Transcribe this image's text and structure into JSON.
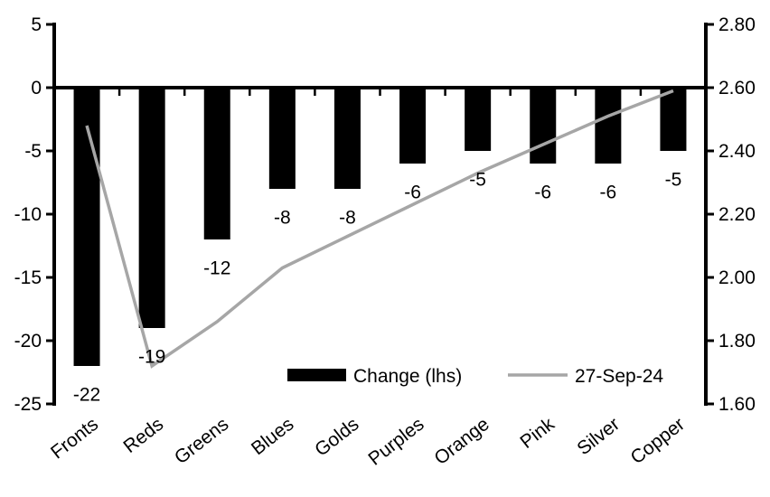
{
  "colors": {
    "bar": "#000000",
    "line": "#A6A6A6",
    "axis": "#000000",
    "text": "#000000",
    "background": "#FFFFFF"
  },
  "chart_data": {
    "type": "bar",
    "subtype": "bar-line-combo-dual-axis",
    "title": "",
    "xlabel": "",
    "ylabel": "",
    "grid": false,
    "legend_position": "bottom-center-inside",
    "categories": [
      "Fronts",
      "Reds",
      "Greens",
      "Blues",
      "Golds",
      "Purples",
      "Orange",
      "Pink",
      "Silver",
      "Copper"
    ],
    "series": [
      {
        "name": "Change (lhs)",
        "type": "bar",
        "axis": "left",
        "color": "#000000",
        "values": [
          -22,
          -19,
          -12,
          -8,
          -8,
          -6,
          -5,
          -6,
          -6,
          -5
        ],
        "data_labels": [
          "-22",
          "-19",
          "-12",
          "-8",
          "-8",
          "-6",
          "-5",
          "-6",
          "-6",
          "-5"
        ]
      },
      {
        "name": "27-Sep-24",
        "type": "line",
        "axis": "right",
        "color": "#A6A6A6",
        "values": [
          2.48,
          1.72,
          1.86,
          2.03,
          2.13,
          2.23,
          2.33,
          2.42,
          2.51,
          2.59
        ]
      }
    ],
    "left_axis": {
      "min": -25,
      "max": 5,
      "step": 5,
      "tick_labels": [
        "5",
        "0",
        "-5",
        "-10",
        "-15",
        "-20",
        "-25"
      ]
    },
    "right_axis": {
      "min": 1.6,
      "max": 2.8,
      "step": 0.2,
      "tick_labels": [
        "2.80",
        "2.60",
        "2.40",
        "2.20",
        "2.00",
        "1.80",
        "1.60"
      ]
    },
    "legend": [
      {
        "label": "Change (lhs)",
        "swatch": "bar"
      },
      {
        "label": "27-Sep-24",
        "swatch": "line"
      }
    ]
  }
}
